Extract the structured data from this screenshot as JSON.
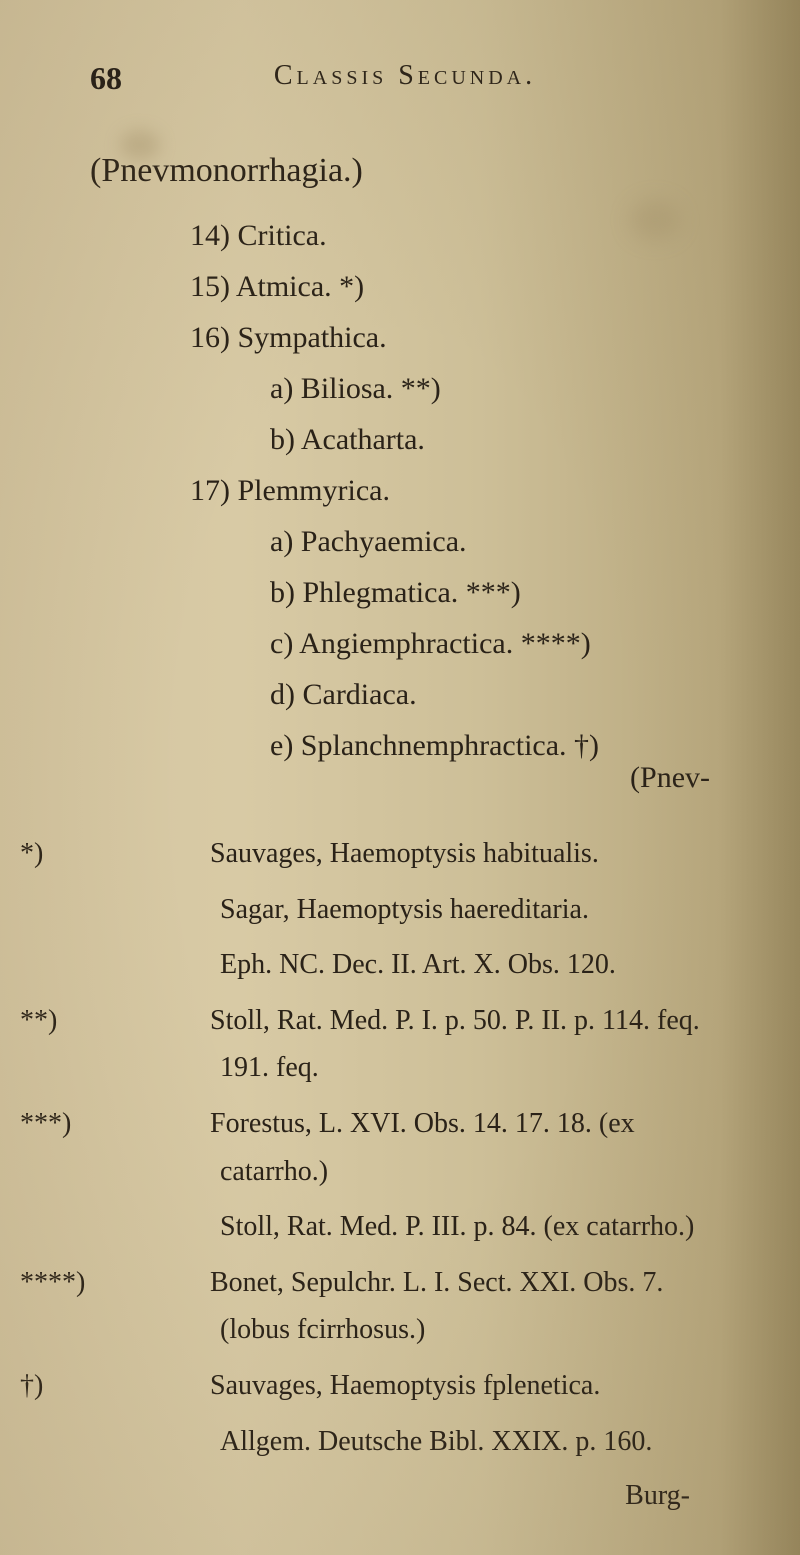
{
  "page_number": "68",
  "header": "Classis Secunda.",
  "title": "(Pnevmonorrhagia.)",
  "items": [
    "14) Critica.",
    "15) Atmica. *)",
    "16) Sympathica."
  ],
  "subitems1": [
    "a) Biliosa. **)",
    "b) Acatharta."
  ],
  "item17": "17) Plemmyrica.",
  "subitems2": [
    "a) Pachyaemica.",
    "b) Phlegmatica. ***)",
    "c) Angiemphractica. ****)",
    "d) Cardiaca.",
    "e) Splanchnemphractica. †)"
  ],
  "catchword1": "(Pnev-",
  "footnotes": [
    {
      "marker": "*)",
      "text": "Sauvages, Haemoptysis habitualis."
    },
    {
      "marker": "",
      "text": "Sagar, Haemoptysis haereditaria."
    },
    {
      "marker": "",
      "text": "Eph. NC. Dec. II. Art. X. Obs. 120."
    },
    {
      "marker": "**)",
      "text": "Stoll, Rat. Med. P. I. p. 50. P. II. p. 114. feq. 191. feq."
    },
    {
      "marker": "***)",
      "text": "Forestus, L. XVI. Obs. 14. 17. 18. (ex catarrho.)"
    },
    {
      "marker": "",
      "text": "Stoll, Rat. Med. P. III. p. 84. (ex catarrho.)"
    },
    {
      "marker": "****)",
      "text": "Bonet, Sepulchr. L. I. Sect. XXI. Obs. 7. (lobus fcirrhosus.)"
    },
    {
      "marker": "†)",
      "text": "Sauvages, Haemoptysis fplenetica."
    },
    {
      "marker": "",
      "text": "Allgem. Deutsche Bibl. XXIX. p. 160."
    }
  ],
  "catchword2": "Burg-",
  "colors": {
    "background": "#d4c5a0",
    "text": "#2a2218"
  },
  "typography": {
    "header_fontsize": 28,
    "body_fontsize": 30,
    "footnote_fontsize": 28,
    "font_family": "Georgia, serif"
  }
}
